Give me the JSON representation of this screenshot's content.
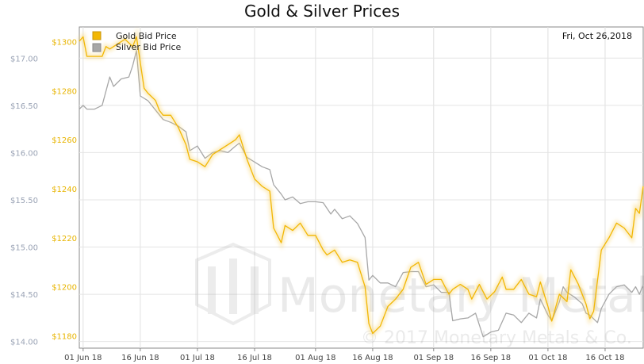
{
  "chart_data": {
    "type": "line",
    "title": "Gold & Silver Prices",
    "date_label": "Fri, Oct 26,2018",
    "watermark": {
      "name": "Monetary Metals",
      "copyright": "© 2017 Monetary Metals & Co."
    },
    "x_ticks": [
      "01 Jun 18",
      "16 Jun 18",
      "01 Jul 18",
      "16 Jul 18",
      "01 Aug 18",
      "16 Aug 18",
      "01 Sep 18",
      "16 Sep 18",
      "01 Oct 18",
      "16 Oct 18"
    ],
    "y_left": {
      "ticks": [
        "$17.00",
        "$16.50",
        "$16.00",
        "$15.50",
        "$15.00",
        "$14.50",
        "$14.00"
      ],
      "tick_values": [
        17.0,
        16.5,
        16.0,
        15.5,
        15.0,
        14.5,
        14.0
      ],
      "range": [
        13.93,
        17.33
      ],
      "color": "#9aa3b5"
    },
    "y_right": {
      "ticks": [
        "$1300",
        "$1280",
        "$1260",
        "$1240",
        "$1220",
        "$1200",
        "$1180"
      ],
      "tick_values": [
        1300,
        1280,
        1260,
        1240,
        1220,
        1200,
        1180
      ],
      "range": [
        1175,
        1306
      ],
      "color": "#e8b400"
    },
    "x_range": [
      "2018-05-31",
      "2018-10-26"
    ],
    "series": [
      {
        "name": "Gold Bid Price",
        "axis": "right",
        "color": "#f2b705",
        "points": [
          [
            "2018-05-31",
            1300.2
          ],
          [
            "2018-06-01",
            1302
          ],
          [
            "2018-06-02",
            1294
          ],
          [
            "2018-06-04",
            1294
          ],
          [
            "2018-06-06",
            1294
          ],
          [
            "2018-06-07",
            1298
          ],
          [
            "2018-06-08",
            1297
          ],
          [
            "2018-06-10",
            1299
          ],
          [
            "2018-06-12",
            1301
          ],
          [
            "2018-06-14",
            1298
          ],
          [
            "2018-06-15",
            1302
          ],
          [
            "2018-06-17",
            1281
          ],
          [
            "2018-06-18",
            1279
          ],
          [
            "2018-06-20",
            1276
          ],
          [
            "2018-06-21",
            1272
          ],
          [
            "2018-06-22",
            1270
          ],
          [
            "2018-06-24",
            1270
          ],
          [
            "2018-06-26",
            1265
          ],
          [
            "2018-06-28",
            1258
          ],
          [
            "2018-06-29",
            1252
          ],
          [
            "2018-07-01",
            1251
          ],
          [
            "2018-07-03",
            1249
          ],
          [
            "2018-07-05",
            1254
          ],
          [
            "2018-07-07",
            1256
          ],
          [
            "2018-07-09",
            1258
          ],
          [
            "2018-07-11",
            1260
          ],
          [
            "2018-07-12",
            1262
          ],
          [
            "2018-07-14",
            1252
          ],
          [
            "2018-07-16",
            1244
          ],
          [
            "2018-07-18",
            1241
          ],
          [
            "2018-07-20",
            1239
          ],
          [
            "2018-07-21",
            1224
          ],
          [
            "2018-07-23",
            1218
          ],
          [
            "2018-07-24",
            1225
          ],
          [
            "2018-07-26",
            1223
          ],
          [
            "2018-07-28",
            1226
          ],
          [
            "2018-07-30",
            1221
          ],
          [
            "2018-08-01",
            1221
          ],
          [
            "2018-08-03",
            1215
          ],
          [
            "2018-08-04",
            1213
          ],
          [
            "2018-08-06",
            1215
          ],
          [
            "2018-08-08",
            1210
          ],
          [
            "2018-08-10",
            1211
          ],
          [
            "2018-08-12",
            1210
          ],
          [
            "2018-08-14",
            1200
          ],
          [
            "2018-08-15",
            1185
          ],
          [
            "2018-08-16",
            1181
          ],
          [
            "2018-08-18",
            1184
          ],
          [
            "2018-08-20",
            1192
          ],
          [
            "2018-08-22",
            1195
          ],
          [
            "2018-08-24",
            1199
          ],
          [
            "2018-08-26",
            1208
          ],
          [
            "2018-08-28",
            1210
          ],
          [
            "2018-08-30",
            1201
          ],
          [
            "2018-09-01",
            1203
          ],
          [
            "2018-09-03",
            1203
          ],
          [
            "2018-09-05",
            1197
          ],
          [
            "2018-09-06",
            1199
          ],
          [
            "2018-09-08",
            1201
          ],
          [
            "2018-09-10",
            1199
          ],
          [
            "2018-09-11",
            1195
          ],
          [
            "2018-09-13",
            1201
          ],
          [
            "2018-09-15",
            1195
          ],
          [
            "2018-09-17",
            1198
          ],
          [
            "2018-09-19",
            1204
          ],
          [
            "2018-09-20",
            1199
          ],
          [
            "2018-09-22",
            1199
          ],
          [
            "2018-09-24",
            1203
          ],
          [
            "2018-09-26",
            1197
          ],
          [
            "2018-09-28",
            1196
          ],
          [
            "2018-09-29",
            1202
          ],
          [
            "2018-10-01",
            1192
          ],
          [
            "2018-10-02",
            1186
          ],
          [
            "2018-10-04",
            1197
          ],
          [
            "2018-10-06",
            1194
          ],
          [
            "2018-10-07",
            1207
          ],
          [
            "2018-10-09",
            1201
          ],
          [
            "2018-10-11",
            1193
          ],
          [
            "2018-10-12",
            1187
          ],
          [
            "2018-10-13",
            1190
          ],
          [
            "2018-10-15",
            1215
          ],
          [
            "2018-10-17",
            1220
          ],
          [
            "2018-10-19",
            1226
          ],
          [
            "2018-10-21",
            1224
          ],
          [
            "2018-10-23",
            1220
          ],
          [
            "2018-10-24",
            1232
          ],
          [
            "2018-10-25",
            1230
          ],
          [
            "2018-10-26",
            1241
          ]
        ]
      },
      {
        "name": "Silver Bid Price",
        "axis": "left",
        "color": "#a7a7a7",
        "points": [
          [
            "2018-05-31",
            16.46
          ],
          [
            "2018-06-01",
            16.5
          ],
          [
            "2018-06-02",
            16.46
          ],
          [
            "2018-06-04",
            16.46
          ],
          [
            "2018-06-06",
            16.5
          ],
          [
            "2018-06-08",
            16.8
          ],
          [
            "2018-06-09",
            16.7
          ],
          [
            "2018-06-11",
            16.78
          ],
          [
            "2018-06-13",
            16.8
          ],
          [
            "2018-06-14",
            16.92
          ],
          [
            "2018-06-15",
            17.08
          ],
          [
            "2018-06-16",
            16.6
          ],
          [
            "2018-06-18",
            16.55
          ],
          [
            "2018-06-20",
            16.45
          ],
          [
            "2018-06-22",
            16.35
          ],
          [
            "2018-06-24",
            16.32
          ],
          [
            "2018-06-26",
            16.28
          ],
          [
            "2018-06-28",
            16.22
          ],
          [
            "2018-06-29",
            16.02
          ],
          [
            "2018-07-01",
            16.07
          ],
          [
            "2018-07-03",
            15.94
          ],
          [
            "2018-07-05",
            16.0
          ],
          [
            "2018-07-07",
            16.02
          ],
          [
            "2018-07-09",
            16.0
          ],
          [
            "2018-07-11",
            16.07
          ],
          [
            "2018-07-12",
            16.1
          ],
          [
            "2018-07-14",
            15.95
          ],
          [
            "2018-07-16",
            15.9
          ],
          [
            "2018-07-18",
            15.85
          ],
          [
            "2018-07-20",
            15.82
          ],
          [
            "2018-07-21",
            15.66
          ],
          [
            "2018-07-23",
            15.56
          ],
          [
            "2018-07-24",
            15.5
          ],
          [
            "2018-07-26",
            15.53
          ],
          [
            "2018-07-28",
            15.46
          ],
          [
            "2018-07-30",
            15.48
          ],
          [
            "2018-08-01",
            15.48
          ],
          [
            "2018-08-03",
            15.47
          ],
          [
            "2018-08-05",
            15.35
          ],
          [
            "2018-08-06",
            15.4
          ],
          [
            "2018-08-08",
            15.3
          ],
          [
            "2018-08-10",
            15.33
          ],
          [
            "2018-08-12",
            15.25
          ],
          [
            "2018-08-14",
            15.1
          ],
          [
            "2018-08-15",
            14.65
          ],
          [
            "2018-08-16",
            14.7
          ],
          [
            "2018-08-18",
            14.62
          ],
          [
            "2018-08-20",
            14.62
          ],
          [
            "2018-08-22",
            14.58
          ],
          [
            "2018-08-24",
            14.73
          ],
          [
            "2018-08-26",
            14.74
          ],
          [
            "2018-08-28",
            14.74
          ],
          [
            "2018-08-30",
            14.58
          ],
          [
            "2018-09-01",
            14.6
          ],
          [
            "2018-09-03",
            14.52
          ],
          [
            "2018-09-05",
            14.52
          ],
          [
            "2018-09-06",
            14.22
          ],
          [
            "2018-09-08",
            14.24
          ],
          [
            "2018-09-10",
            14.25
          ],
          [
            "2018-09-12",
            14.3
          ],
          [
            "2018-09-14",
            14.05
          ],
          [
            "2018-09-16",
            14.1
          ],
          [
            "2018-09-18",
            14.12
          ],
          [
            "2018-09-20",
            14.3
          ],
          [
            "2018-09-22",
            14.28
          ],
          [
            "2018-09-24",
            14.2
          ],
          [
            "2018-09-26",
            14.3
          ],
          [
            "2018-09-28",
            14.25
          ],
          [
            "2018-09-29",
            14.45
          ],
          [
            "2018-10-01",
            14.28
          ],
          [
            "2018-10-02",
            14.22
          ],
          [
            "2018-10-04",
            14.42
          ],
          [
            "2018-10-05",
            14.58
          ],
          [
            "2018-10-06",
            14.52
          ],
          [
            "2018-10-08",
            14.47
          ],
          [
            "2018-10-10",
            14.4
          ],
          [
            "2018-10-11",
            14.3
          ],
          [
            "2018-10-12",
            14.28
          ],
          [
            "2018-10-14",
            14.2
          ],
          [
            "2018-10-15",
            14.35
          ],
          [
            "2018-10-17",
            14.5
          ],
          [
            "2018-10-19",
            14.58
          ],
          [
            "2018-10-21",
            14.6
          ],
          [
            "2018-10-23",
            14.52
          ],
          [
            "2018-10-24",
            14.58
          ],
          [
            "2018-10-25",
            14.5
          ],
          [
            "2018-10-26",
            14.6
          ]
        ]
      }
    ]
  }
}
